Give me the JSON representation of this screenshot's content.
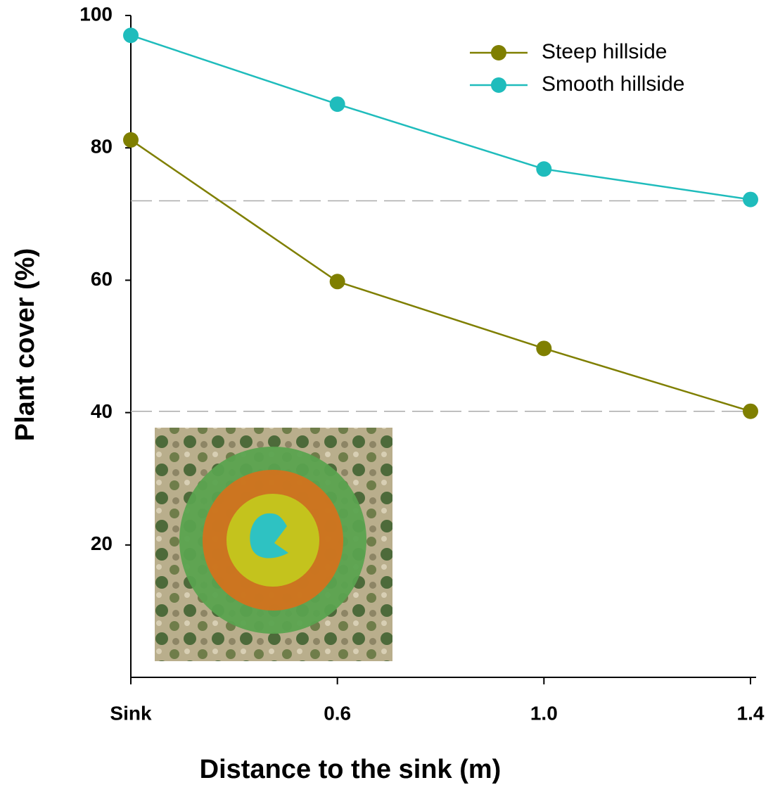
{
  "chart_data": {
    "type": "line",
    "x_label": "Distance to the sink (m)",
    "y_label": "Plant cover (%)",
    "categories": [
      "Sink",
      "0.6",
      "1.0",
      "1.4"
    ],
    "series": [
      {
        "name": "Steep hillside",
        "color": "#7f7f00",
        "values": [
          81.2,
          59.8,
          49.7,
          40.2
        ]
      },
      {
        "name": "Smooth hillside",
        "color": "#1fbcbc",
        "values": [
          97.0,
          86.6,
          76.8,
          72.2
        ]
      }
    ],
    "reference_lines": [
      72.0,
      40.2
    ],
    "ylim": [
      0,
      100
    ],
    "yticks": [
      20,
      40,
      60,
      80,
      100
    ],
    "legend": "upper right"
  }
}
